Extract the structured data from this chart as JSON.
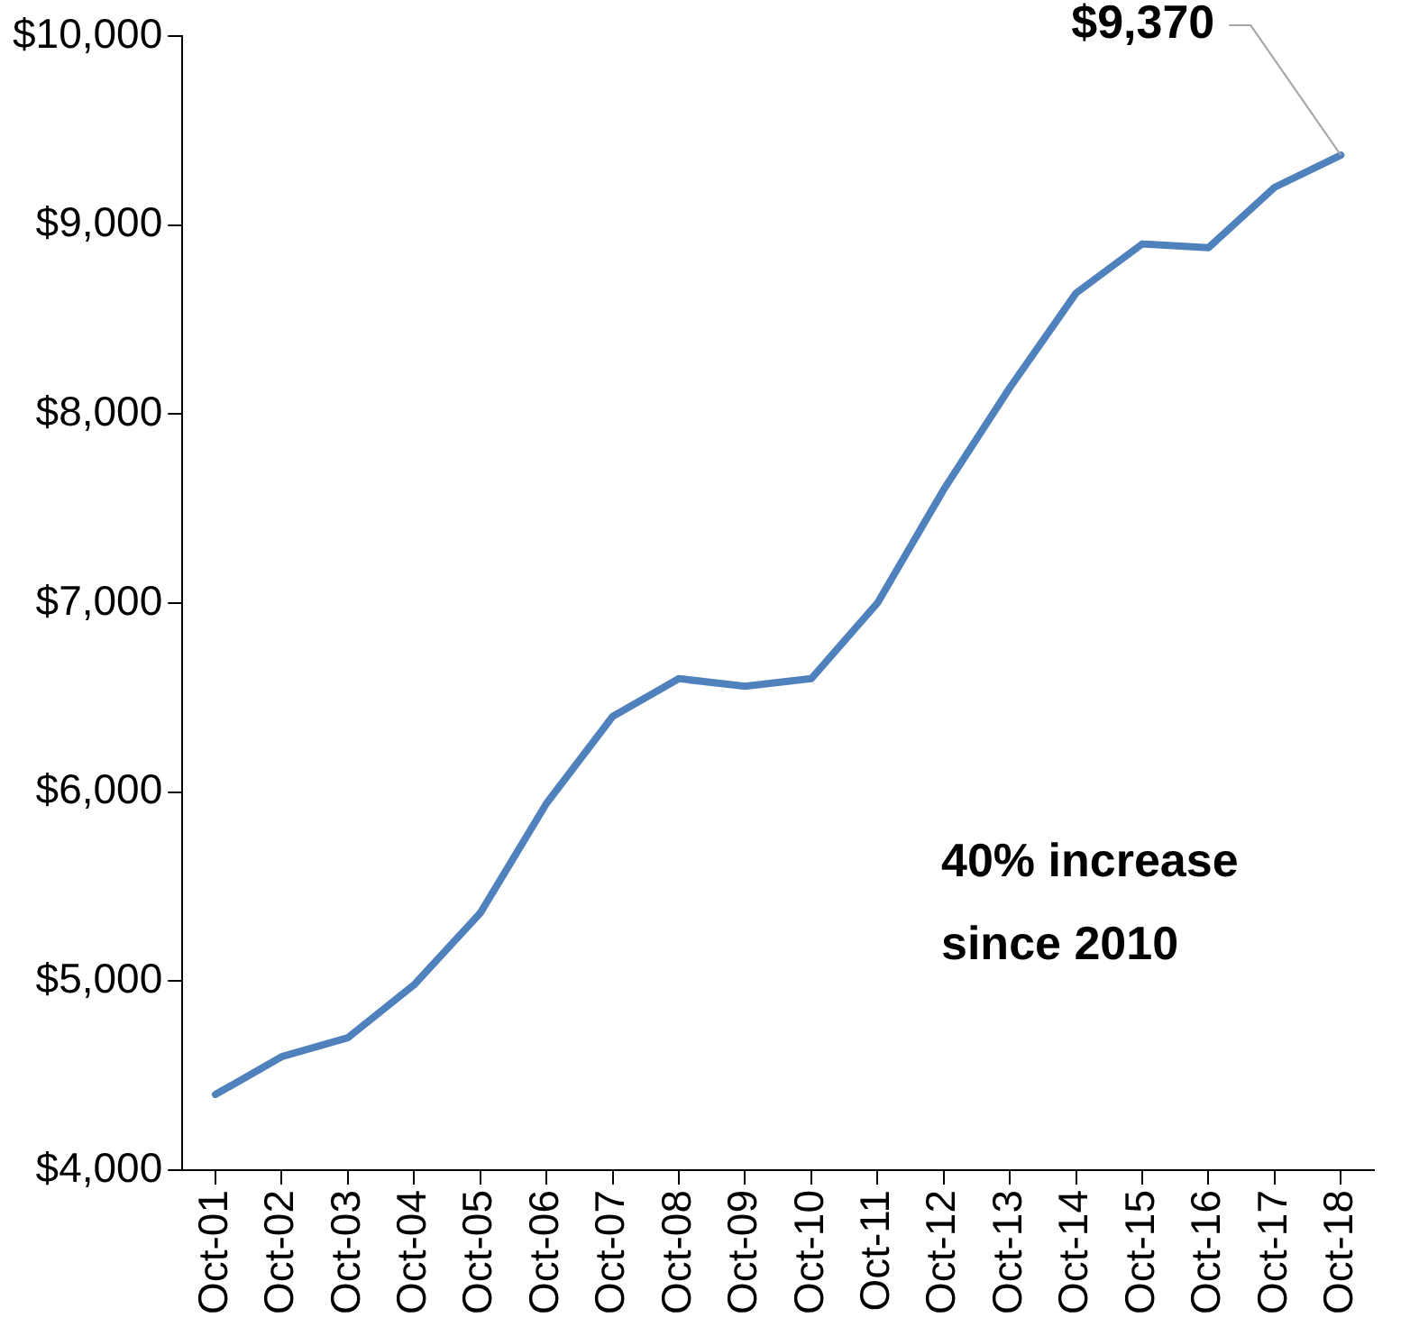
{
  "chart_data": {
    "type": "line",
    "categories": [
      "Oct-01",
      "Oct-02",
      "Oct-03",
      "Oct-04",
      "Oct-05",
      "Oct-06",
      "Oct-07",
      "Oct-08",
      "Oct-09",
      "Oct-10",
      "Oct-11",
      "Oct-12",
      "Oct-13",
      "Oct-14",
      "Oct-15",
      "Oct-16",
      "Oct-17",
      "Oct-18"
    ],
    "series": [
      {
        "color": "#4f81bd",
        "values": [
          4400,
          4600,
          4700,
          4980,
          5360,
          5940,
          6400,
          6600,
          6560,
          6600,
          7000,
          7600,
          8140,
          8640,
          8900,
          8880,
          9200,
          9370
        ]
      }
    ],
    "ylim": [
      4000,
      10000
    ],
    "yticks": [
      {
        "value": 4000,
        "label": "$4,000"
      },
      {
        "value": 5000,
        "label": "$5,000"
      },
      {
        "value": 6000,
        "label": "$6,000"
      },
      {
        "value": 7000,
        "label": "$7,000"
      },
      {
        "value": 8000,
        "label": "$8,000"
      },
      {
        "value": 9000,
        "label": "$9,000"
      },
      {
        "value": 10000,
        "label": "$10,000"
      }
    ],
    "grid": false,
    "legend": false,
    "marker": "none",
    "line_style": "solid",
    "annotations": [
      {
        "text": "$9,370",
        "x": "Oct-18",
        "y": 9370
      },
      "40% increase since 2010"
    ]
  }
}
